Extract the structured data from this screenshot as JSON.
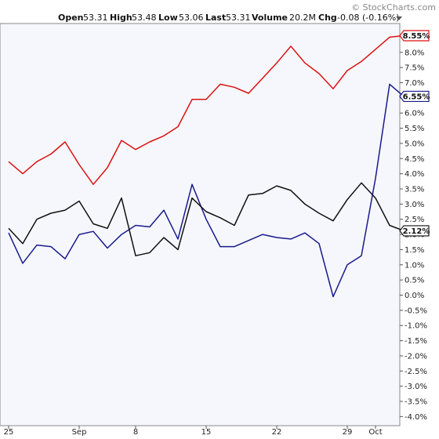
{
  "watermark": "© StockCharts.com",
  "infobar": {
    "open_label": "Open",
    "open_value": "53.31",
    "high_label": "High",
    "high_value": "53.48",
    "low_label": "Low",
    "low_value": "53.06",
    "last_label": "Last",
    "last_value": "53.31",
    "volume_label": "Volume",
    "volume_value": "20.2M",
    "chg_label": "Chg",
    "chg_value": "-0.08 (-0.16%)"
  },
  "chart_data": {
    "type": "line",
    "title": "",
    "xlabel": "",
    "ylabel": "",
    "ylim": [
      -4.3,
      8.95
    ],
    "grid": false,
    "yticks": [
      "8.0%",
      "7.5%",
      "7.0%",
      "6.5%",
      "6.0%",
      "5.5%",
      "5.0%",
      "4.5%",
      "4.0%",
      "3.5%",
      "3.0%",
      "2.5%",
      "2.0%",
      "1.5%",
      "1.0%",
      "0.5%",
      "0.0%",
      "-0.5%",
      "-1.0%",
      "-1.5%",
      "-2.0%",
      "-2.5%",
      "-3.0%",
      "-3.5%",
      "-4.0%"
    ],
    "ytick_values": [
      8.0,
      7.5,
      7.0,
      6.5,
      6.0,
      5.5,
      5.0,
      4.5,
      4.0,
      3.5,
      3.0,
      2.5,
      2.0,
      1.5,
      1.0,
      0.5,
      0.0,
      -0.5,
      -1.0,
      -1.5,
      -2.0,
      -2.5,
      -3.0,
      -3.5,
      -4.0
    ],
    "xticks": [
      "25",
      "Sep",
      "8",
      "15",
      "22",
      "29",
      "Oct"
    ],
    "xtick_index": [
      0,
      5,
      9,
      14,
      19,
      24,
      26
    ],
    "series": [
      {
        "color": "#dd1111",
        "end_label": "8.55%",
        "values": [
          4.4,
          4.0,
          4.4,
          4.65,
          5.05,
          4.3,
          3.65,
          4.2,
          5.1,
          4.8,
          5.05,
          5.25,
          5.55,
          6.45,
          6.45,
          6.95,
          6.85,
          6.65,
          7.15,
          7.65,
          8.2,
          7.65,
          7.3,
          6.8,
          7.4,
          7.7,
          8.1,
          8.5,
          8.55
        ]
      },
      {
        "color": "#1a1a8c",
        "end_label": "6.55%",
        "values": [
          2.05,
          1.05,
          1.65,
          1.6,
          1.2,
          2.0,
          2.1,
          1.55,
          2.0,
          2.3,
          2.25,
          2.8,
          1.85,
          3.65,
          2.5,
          1.6,
          1.6,
          1.8,
          2.0,
          1.9,
          1.85,
          2.05,
          1.7,
          -0.05,
          1.0,
          1.3,
          3.85,
          6.95,
          6.55
        ]
      },
      {
        "color": "#111111",
        "end_label": "2.12%",
        "values": [
          2.2,
          1.7,
          2.5,
          2.7,
          2.8,
          3.1,
          2.35,
          2.2,
          3.2,
          1.3,
          1.4,
          1.9,
          1.5,
          3.2,
          2.75,
          2.55,
          2.3,
          3.3,
          3.35,
          3.6,
          3.45,
          3.0,
          2.7,
          2.45,
          3.15,
          3.7,
          3.2,
          2.3,
          2.12
        ]
      }
    ]
  }
}
